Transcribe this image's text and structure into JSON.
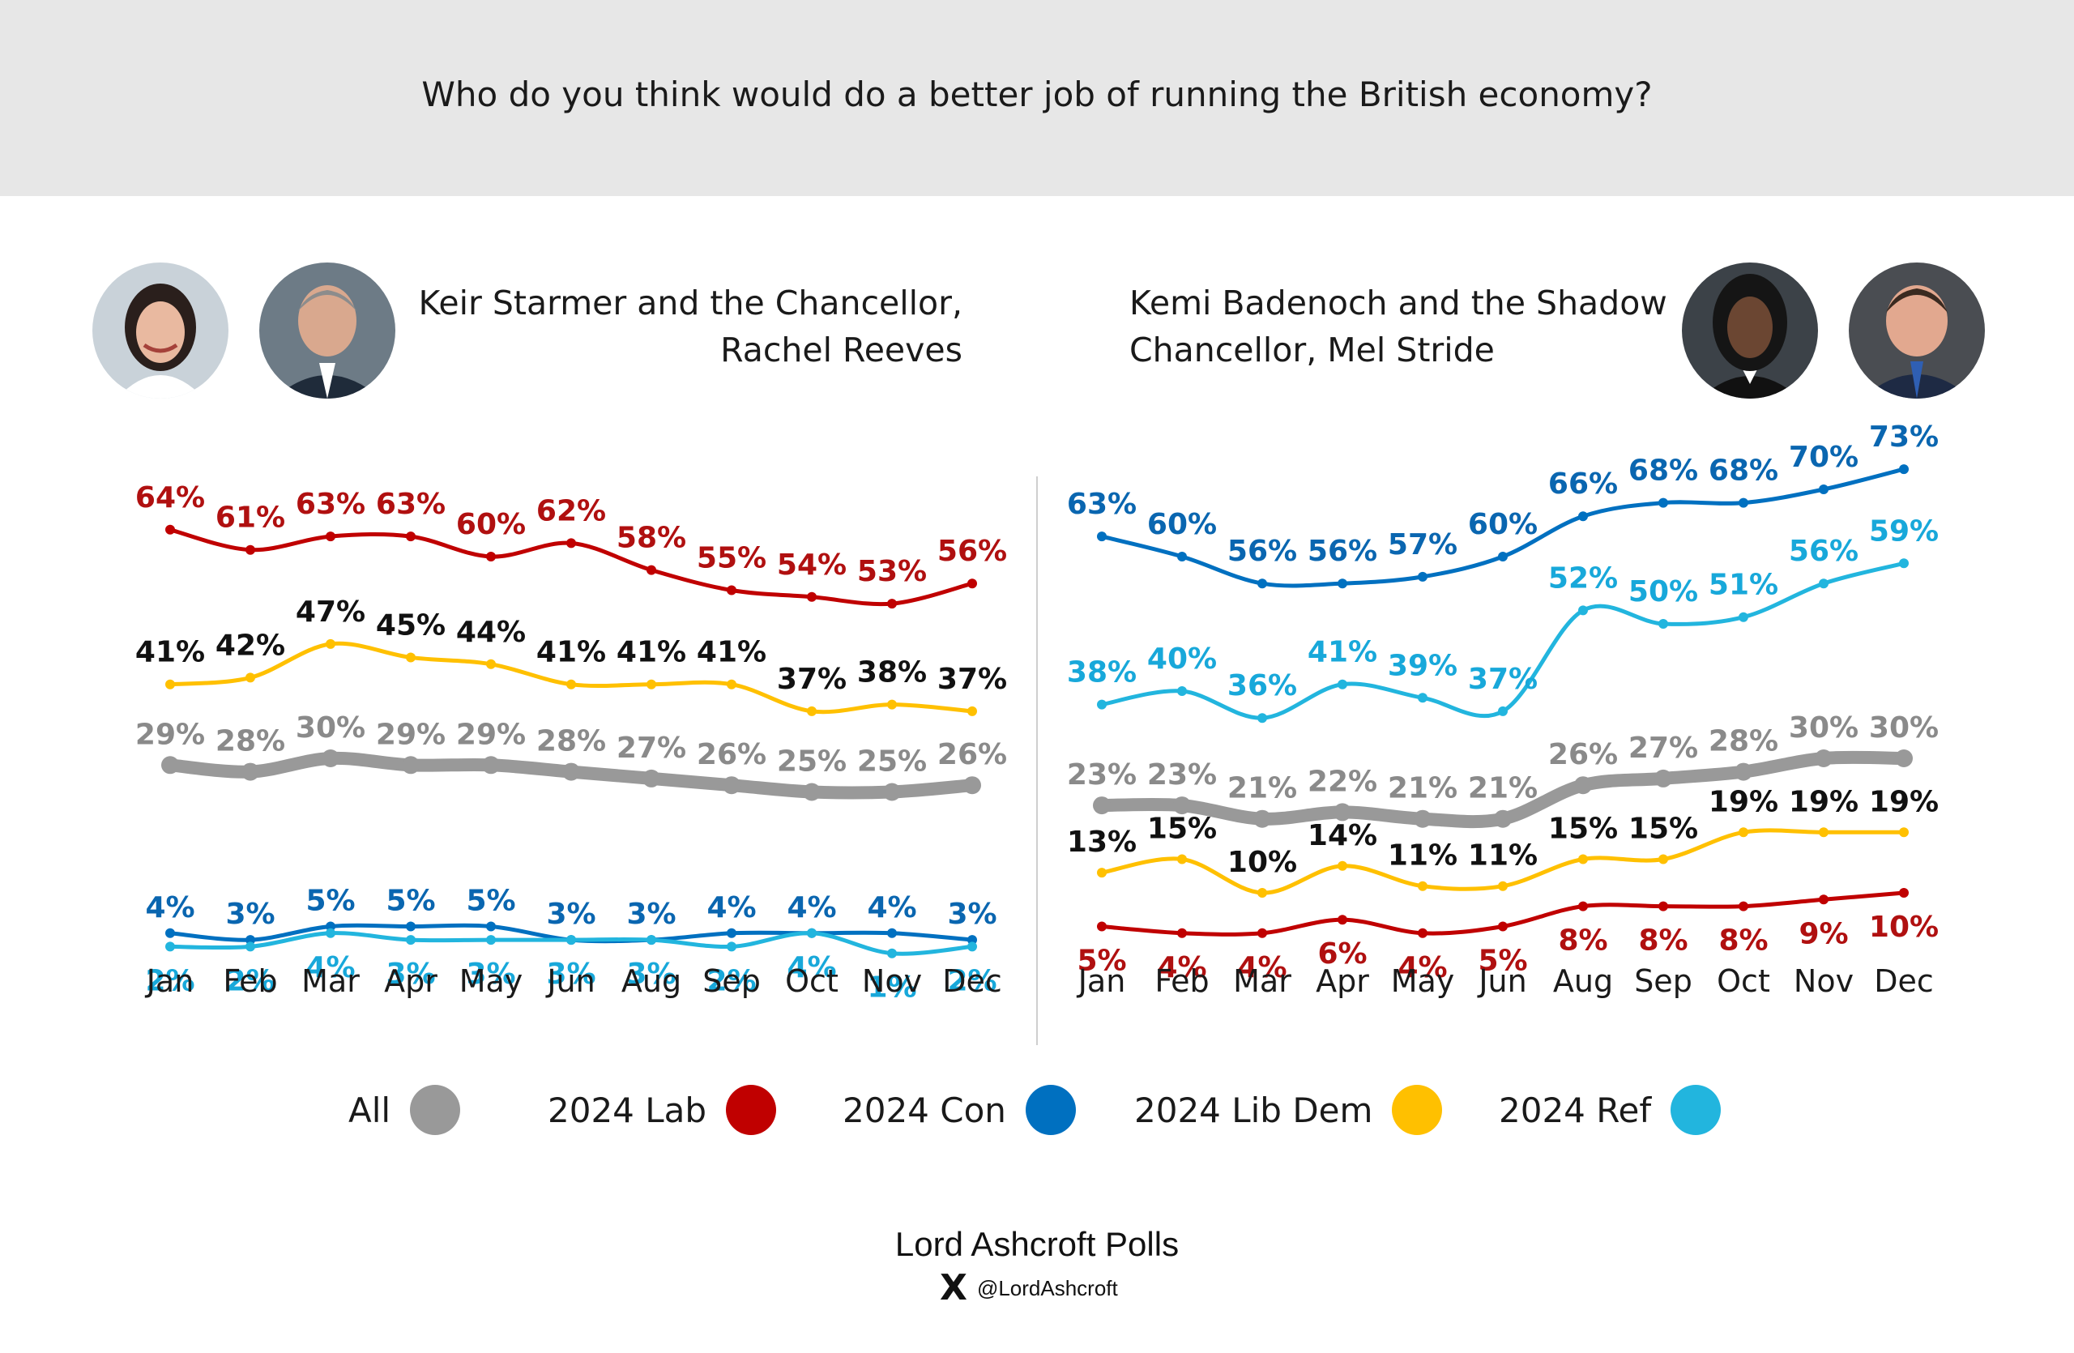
{
  "question": "Who do you think would do a better job of running the British economy?",
  "colors": {
    "All": "#999999",
    "2024 Lab": "#c00000",
    "2024 Con": "#0070c0",
    "2024 Lib Dem": "#ffc000",
    "2024 Ref": "#22b5de",
    "lab_label": "#b01010",
    "con_label": "#0a66b0",
    "ref_label": "#18a8da",
    "libdem_label": "#111111",
    "all_label": "#8a8a8a"
  },
  "panels": {
    "left": {
      "title_line1": "Keir Starmer and the Chancellor,",
      "title_line2": "Rachel Reeves"
    },
    "right": {
      "title_line1": "Kemi Badenoch and the Shadow",
      "title_line2": "Chancellor, Mel Stride"
    }
  },
  "legend": [
    {
      "label": "All",
      "color": "#999999"
    },
    {
      "label": "2024 Lab",
      "color": "#c00000"
    },
    {
      "label": "2024 Con",
      "color": "#0070c0"
    },
    {
      "label": "2024 Lib Dem",
      "color": "#ffc000"
    },
    {
      "label": "2024 Ref",
      "color": "#22b5de"
    }
  ],
  "footer": {
    "title": "Lord Ashcroft Polls",
    "x_logo": "X",
    "handle": "@LordAshcroft"
  },
  "chart_data": [
    {
      "type": "line",
      "title": "Keir Starmer and the Chancellor, Rachel Reeves",
      "categories": [
        "Jan",
        "Feb",
        "Mar",
        "Apr",
        "May",
        "Jun",
        "Aug",
        "Sep",
        "Oct",
        "Nov",
        "Dec"
      ],
      "unit": "%",
      "series": [
        {
          "name": "2024 Lab",
          "values": [
            64,
            61,
            63,
            63,
            60,
            62,
            58,
            55,
            54,
            53,
            56
          ]
        },
        {
          "name": "2024 Lib Dem",
          "values": [
            41,
            42,
            47,
            45,
            44,
            41,
            41,
            41,
            37,
            38,
            37
          ]
        },
        {
          "name": "All",
          "values": [
            29,
            28,
            30,
            29,
            29,
            28,
            27,
            26,
            25,
            25,
            26
          ]
        },
        {
          "name": "2024 Con",
          "values": [
            4,
            3,
            5,
            5,
            5,
            3,
            3,
            4,
            4,
            4,
            3
          ]
        },
        {
          "name": "2024 Ref",
          "values": [
            2,
            2,
            4,
            3,
            3,
            3,
            3,
            2,
            4,
            1,
            2
          ]
        }
      ]
    },
    {
      "type": "line",
      "title": "Kemi Badenoch and the Shadow Chancellor, Mel Stride",
      "categories": [
        "Jan",
        "Feb",
        "Mar",
        "Apr",
        "May",
        "Jun",
        "Aug",
        "Sep",
        "Oct",
        "Nov",
        "Dec"
      ],
      "unit": "%",
      "series": [
        {
          "name": "2024 Con",
          "values": [
            63,
            60,
            56,
            56,
            57,
            60,
            66,
            68,
            68,
            70,
            73
          ]
        },
        {
          "name": "2024 Ref",
          "values": [
            38,
            40,
            36,
            41,
            39,
            37,
            52,
            50,
            51,
            56,
            59
          ]
        },
        {
          "name": "All",
          "values": [
            23,
            23,
            21,
            22,
            21,
            21,
            26,
            27,
            28,
            30,
            30
          ]
        },
        {
          "name": "2024 Lib Dem",
          "values": [
            13,
            15,
            10,
            14,
            11,
            11,
            15,
            15,
            19,
            19,
            19
          ]
        },
        {
          "name": "2024 Lab",
          "values": [
            5,
            4,
            4,
            6,
            4,
            5,
            8,
            8,
            8,
            9,
            10
          ]
        }
      ]
    }
  ]
}
